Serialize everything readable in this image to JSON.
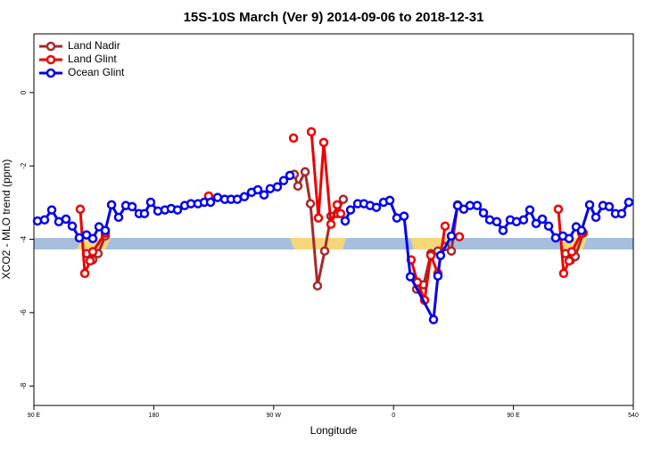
{
  "chart_data": {
    "type": "line",
    "title": "15S-10S March (Ver 9)   2014-09-06 to 2018-12-31",
    "xlabel": "Longitude",
    "ylabel": "XCO2 - MLO trend (ppm)",
    "xlim": [
      90,
      540
    ],
    "ylim": [
      -8.53,
      1.6
    ],
    "xticks": [
      {
        "value": 90,
        "label": "90 E"
      },
      180,
      {
        "value": 270,
        "label": "90 W"
      },
      {
        "value": 360,
        "label": "0"
      },
      {
        "value": 450,
        "label": "90 E"
      },
      540
    ],
    "yticks": [
      0,
      -2,
      -4,
      -6,
      -8
    ],
    "legend": "upper left",
    "series": [
      {
        "name": "Land Nadir",
        "color": "#a52a2a",
        "x": [
          129.5,
          134.2,
          138.2,
          143.6,
          200,
          285.5,
          288.2,
          293.6,
          297.6,
          302.9,
          308.3,
          313.0,
          317.7,
          322.3,
          350,
          377.3,
          382.6,
          388.0,
          393.3,
          398.7,
          403.4,
          408.1,
          450,
          489.1,
          493.1,
          496.4,
          502.5
        ],
        "values": [
          -4.39,
          -4.56,
          -4.39,
          -3.91,
          null,
          -2.23,
          -2.55,
          -2.16,
          -3.03,
          -5.27,
          -4.32,
          -3.37,
          -3.3,
          -2.91,
          null,
          -5.36,
          -5.24,
          -4.39,
          -4.32,
          -4.2,
          -4.32,
          -3.06,
          null,
          -4.39,
          -4.56,
          -4.47,
          -3.83
        ]
      },
      {
        "name": "Land Glint",
        "color": "#ee0000",
        "x": [
          124.8,
          128.2,
          132.2,
          134.2,
          143.6,
          180,
          221.2,
          260,
          284.9,
          290,
          298.3,
          303.6,
          307.6,
          313.0,
          317.7,
          320.3,
          340,
          373.2,
          377.9,
          383.3,
          388.0,
          393.3,
          398.7,
          404,
          409.4,
          450,
          483.7,
          487.7,
          491.8,
          493.8,
          501.1
        ],
        "values": [
          -3.18,
          -4.93,
          -4.59,
          -4.34,
          -3.83,
          null,
          -2.82,
          null,
          -1.24,
          null,
          -1.07,
          -3.42,
          -1.36,
          -3.59,
          -3.06,
          -3.3,
          null,
          -4.56,
          -5.17,
          -5.66,
          -4.44,
          -4.93,
          -3.64,
          null,
          -3.93,
          null,
          -3.18,
          -4.93,
          -4.59,
          -4.34,
          -3.83
        ]
      },
      {
        "name": "Ocean Glint",
        "color": "#0000ee",
        "x": [
          92.7,
          98.0,
          103.4,
          108.7,
          114.1,
          118.8,
          124.1,
          129.5,
          134.2,
          138.9,
          143.6,
          148.3,
          153.6,
          159.0,
          163.7,
          169.0,
          173.0,
          177.7,
          183.1,
          188.4,
          193.1,
          197.8,
          203.2,
          207.9,
          213.2,
          217.9,
          222.6,
          227.9,
          233.3,
          238.0,
          242.7,
          248.0,
          253.4,
          258.1,
          262.8,
          267.4,
          272.8,
          277.5,
          282.2,
          300,
          323.7,
          327.7,
          333.1,
          337.8,
          342.4,
          347.1,
          352.5,
          357.2,
          362.5,
          367.9,
          372.6,
          390.0,
          393.3,
          395.3,
          403.4,
          408.1,
          412.7,
          417.4,
          422.8,
          427.5,
          432.2,
          437.5,
          442.2,
          447.6,
          452.3,
          457.6,
          462.3,
          467.0,
          471.7,
          476.4,
          481.7,
          487.1,
          491.8,
          497.1,
          501.1,
          507.2,
          511.9,
          517.2,
          521.9,
          526.6,
          531.3,
          536.6
        ],
        "values": [
          -3.5,
          -3.47,
          -3.2,
          -3.52,
          -3.45,
          -3.64,
          -3.96,
          -3.88,
          -3.98,
          -3.66,
          -3.76,
          -3.06,
          -3.4,
          -3.08,
          -3.11,
          -3.3,
          -3.3,
          -2.99,
          -3.23,
          -3.2,
          -3.16,
          -3.2,
          -3.08,
          -3.03,
          -3.03,
          -2.99,
          -2.99,
          -2.86,
          -2.91,
          -2.91,
          -2.91,
          -2.84,
          -2.72,
          -2.65,
          -2.79,
          -2.62,
          -2.57,
          -2.4,
          -2.26,
          null,
          -3.5,
          -3.2,
          -3.03,
          -3.03,
          -3.08,
          -3.13,
          -2.99,
          -2.94,
          -3.42,
          -3.37,
          -5.02,
          -6.19,
          -5.0,
          -4.44,
          -3.91,
          -3.08,
          -3.18,
          -3.08,
          -3.08,
          -3.28,
          -3.47,
          -3.52,
          -3.76,
          -3.47,
          -3.52,
          -3.47,
          -3.2,
          -3.57,
          -3.45,
          -3.64,
          -3.96,
          -3.91,
          -3.98,
          -3.66,
          -3.76,
          -3.06,
          -3.4,
          -3.08,
          -3.11,
          -3.3,
          -3.3,
          -2.99
        ]
      }
    ]
  }
}
